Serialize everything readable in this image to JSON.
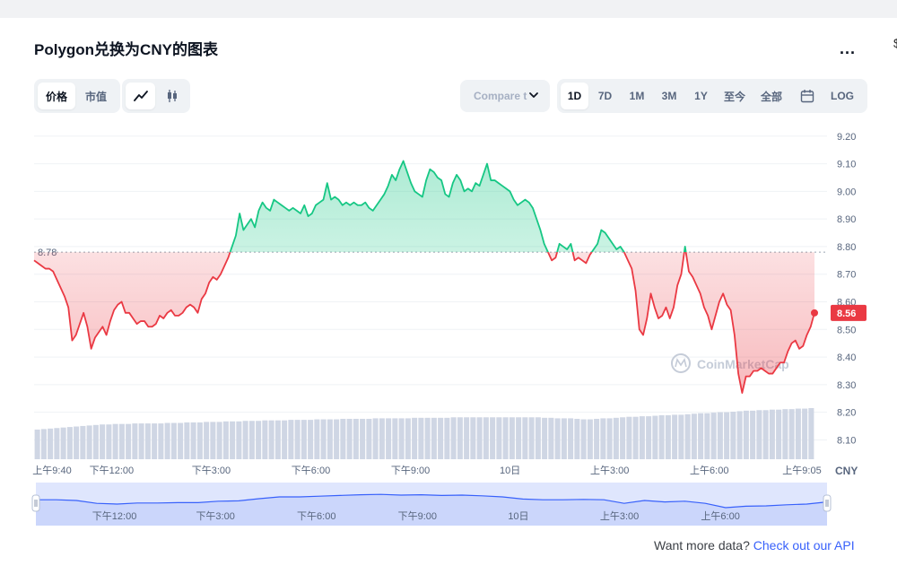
{
  "header": {
    "title": "Polygon兑换为CNY的图表",
    "more_label": "...",
    "edge_glyph": "$"
  },
  "toolbar": {
    "metric_tabs": [
      {
        "label": "价格",
        "active": true
      },
      {
        "label": "市值",
        "active": false
      }
    ],
    "chart_type_icons": [
      {
        "icon": "line-chart-icon",
        "active": true
      },
      {
        "icon": "candlestick-icon",
        "active": false
      }
    ],
    "compare_label": "Compare t",
    "range_tabs": [
      {
        "label": "1D",
        "active": true
      },
      {
        "label": "7D",
        "active": false
      },
      {
        "label": "1M",
        "active": false
      },
      {
        "label": "3M",
        "active": false
      },
      {
        "label": "1Y",
        "active": false
      },
      {
        "label": "至今",
        "active": false
      },
      {
        "label": "全部",
        "active": false
      }
    ],
    "calendar_icon": "calendar-icon",
    "log_label": "LOG"
  },
  "chart_data": {
    "type": "area",
    "baseline": 8.78,
    "baseline_label": "8.78",
    "current_price_label": "8.56",
    "currency_label": "CNY",
    "watermark": "CoinMarketCap",
    "ylim": [
      8.03,
      9.235
    ],
    "y_ticks": [
      "9.20",
      "9.10",
      "9.00",
      "8.90",
      "8.80",
      "8.70",
      "8.60",
      "8.50",
      "8.40",
      "8.30",
      "8.20",
      "8.10"
    ],
    "y_tick_values": [
      9.2,
      9.1,
      9.0,
      8.9,
      8.8,
      8.7,
      8.6,
      8.5,
      8.4,
      8.3,
      8.2,
      8.1
    ],
    "x_labels": [
      {
        "label": "上午9:40",
        "t": 0
      },
      {
        "label": "下午12:00",
        "t": 2.333
      },
      {
        "label": "下午3:00",
        "t": 5.333
      },
      {
        "label": "下午6:00",
        "t": 8.333
      },
      {
        "label": "下午9:00",
        "t": 11.333
      },
      {
        "label": "10日",
        "t": 14.333
      },
      {
        "label": "上午3:00",
        "t": 17.333
      },
      {
        "label": "上午6:00",
        "t": 20.333
      },
      {
        "label": "上午9:05",
        "t": 23.417
      }
    ],
    "x_range_hours": [
      0,
      23.5
    ],
    "colors": {
      "up": "#16c784",
      "down": "#ea3943",
      "volume": "#cfd6e4",
      "navigator": "#3861fb"
    },
    "series": [
      {
        "values": [
          8.75,
          8.74,
          8.73,
          8.72,
          8.72,
          8.71,
          8.68,
          8.65,
          8.62,
          8.58,
          8.46,
          8.48,
          8.52,
          8.56,
          8.51,
          8.43,
          8.47,
          8.49,
          8.51,
          8.48,
          8.53,
          8.57,
          8.59,
          8.6,
          8.56,
          8.56,
          8.54,
          8.52,
          8.53,
          8.53,
          8.51,
          8.51,
          8.52,
          8.55,
          8.54,
          8.56,
          8.57,
          8.55,
          8.55,
          8.56,
          8.58,
          8.59,
          8.58,
          8.56,
          8.61,
          8.63,
          8.67,
          8.69,
          8.68,
          8.7,
          8.73,
          8.76,
          8.8,
          8.84,
          8.92,
          8.86,
          8.88,
          8.9,
          8.87,
          8.93,
          8.96,
          8.94,
          8.93,
          8.97,
          8.96,
          8.95,
          8.94,
          8.93,
          8.94,
          8.93,
          8.92,
          8.95,
          8.91,
          8.92,
          8.95,
          8.96,
          8.97,
          9.03,
          8.97,
          8.98,
          8.97,
          8.95,
          8.96,
          8.95,
          8.96,
          8.95,
          8.95,
          8.96,
          8.94,
          8.93,
          8.95,
          8.97,
          8.99,
          9.02,
          9.06,
          9.04,
          9.08,
          9.11,
          9.07,
          9.03,
          9,
          8.99,
          8.98,
          9.04,
          9.08,
          9.07,
          9.05,
          9.04,
          8.99,
          8.98,
          9.03,
          9.06,
          9.04,
          9,
          9.01,
          9,
          9.03,
          9.02,
          9.06,
          9.1,
          9.04,
          9.04,
          9.03,
          9.02,
          9.01,
          9,
          8.97,
          8.95,
          8.96,
          8.97,
          8.96,
          8.94,
          8.9,
          8.86,
          8.81,
          8.78,
          8.75,
          8.76,
          8.81,
          8.8,
          8.79,
          8.81,
          8.75,
          8.76,
          8.75,
          8.74,
          8.77,
          8.79,
          8.81,
          8.86,
          8.85,
          8.83,
          8.81,
          8.79,
          8.8,
          8.78,
          8.75,
          8.72,
          8.64,
          8.5,
          8.48,
          8.54,
          8.63,
          8.58,
          8.54,
          8.55,
          8.58,
          8.54,
          8.58,
          8.66,
          8.7,
          8.8,
          8.71,
          8.69,
          8.66,
          8.63,
          8.58,
          8.55,
          8.5,
          8.55,
          8.6,
          8.63,
          8.59,
          8.57,
          8.48,
          8.34,
          8.27,
          8.33,
          8.33,
          8.35,
          8.35,
          8.36,
          8.35,
          8.34,
          8.34,
          8.36,
          8.38,
          8.38,
          8.42,
          8.45,
          8.46,
          8.43,
          8.44,
          8.48,
          8.51,
          8.56
        ]
      }
    ],
    "volume_levels": [
      0.58,
      0.59,
      0.6,
      0.61,
      0.62,
      0.63,
      0.64,
      0.65,
      0.66,
      0.67,
      0.68,
      0.68,
      0.69,
      0.69,
      0.69,
      0.7,
      0.7,
      0.7,
      0.7,
      0.7,
      0.71,
      0.71,
      0.71,
      0.72,
      0.72,
      0.72,
      0.73,
      0.73,
      0.73,
      0.74,
      0.74,
      0.74,
      0.75,
      0.75,
      0.75,
      0.76,
      0.76,
      0.76,
      0.76,
      0.77,
      0.77,
      0.77,
      0.77,
      0.78,
      0.78,
      0.78,
      0.78,
      0.79,
      0.79,
      0.79,
      0.79,
      0.79,
      0.8,
      0.8,
      0.8,
      0.8,
      0.8,
      0.8,
      0.81,
      0.81,
      0.81,
      0.81,
      0.81,
      0.81,
      0.82,
      0.82,
      0.82,
      0.82,
      0.82,
      0.82,
      0.82,
      0.82,
      0.82,
      0.82,
      0.82,
      0.82,
      0.82,
      0.82,
      0.81,
      0.81,
      0.8,
      0.8,
      0.8,
      0.79,
      0.78,
      0.78,
      0.79,
      0.8,
      0.8,
      0.81,
      0.82,
      0.83,
      0.83,
      0.84,
      0.84,
      0.85,
      0.86,
      0.86,
      0.87,
      0.87,
      0.88,
      0.89,
      0.9,
      0.9,
      0.91,
      0.92,
      0.92,
      0.93,
      0.94,
      0.95,
      0.95,
      0.96,
      0.96,
      0.97,
      0.97,
      0.98,
      0.98,
      0.99,
      0.99,
      1
    ],
    "navigator_series": [
      0.72,
      0.72,
      0.7,
      0.62,
      0.6,
      0.63,
      0.63,
      0.64,
      0.64,
      0.68,
      0.69,
      0.75,
      0.8,
      0.8,
      0.82,
      0.84,
      0.86,
      0.87,
      0.85,
      0.86,
      0.84,
      0.85,
      0.83,
      0.8,
      0.74,
      0.72,
      0.72,
      0.73,
      0.72,
      0.62,
      0.7,
      0.66,
      0.68,
      0.62,
      0.5,
      0.54,
      0.55,
      0.58,
      0.6,
      0.66
    ]
  },
  "footer": {
    "prefix": "Want more data?",
    "link_label": "Check out our API"
  }
}
